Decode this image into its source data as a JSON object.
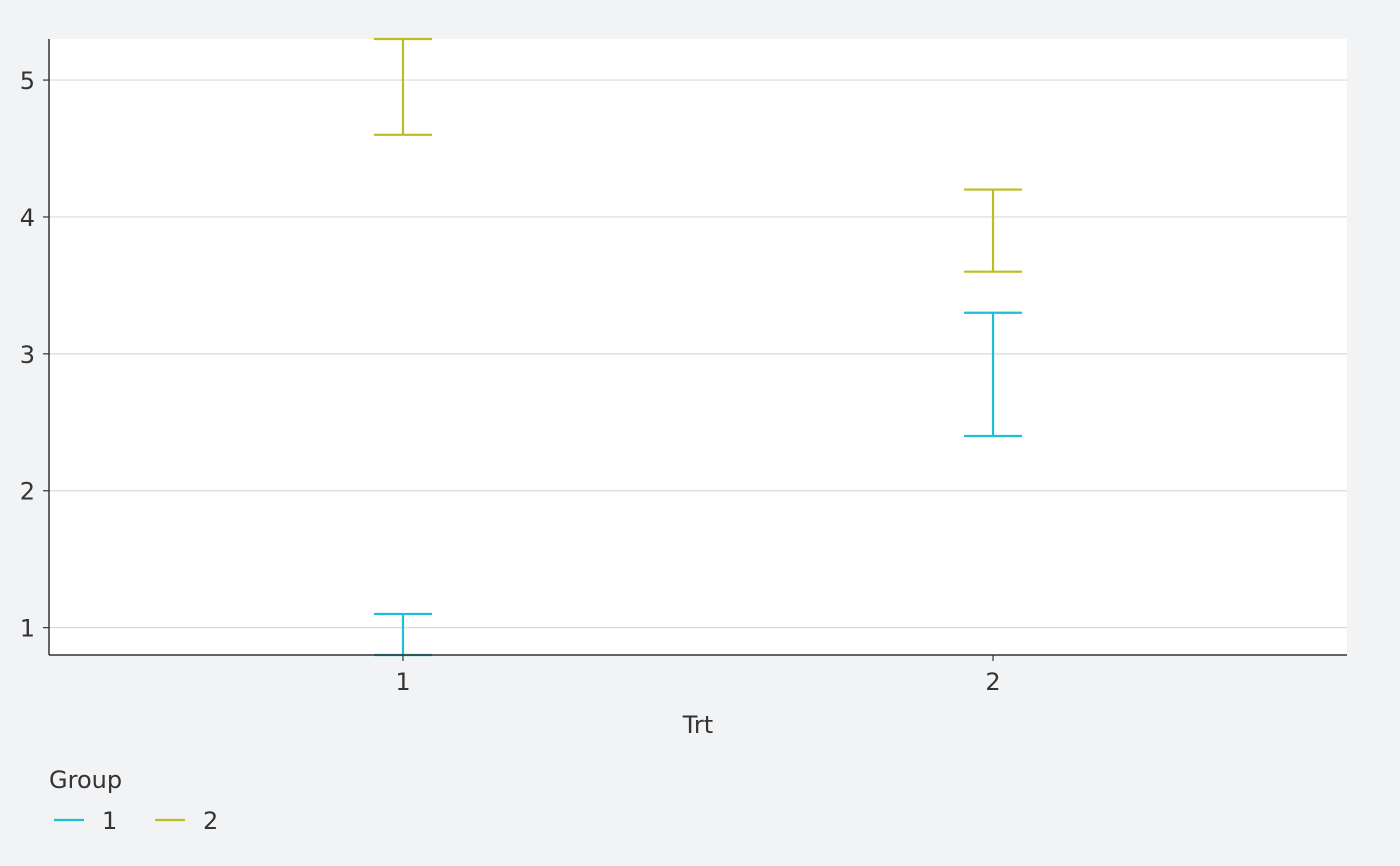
{
  "chart_data": {
    "type": "errorbar",
    "xlabel": "Trt",
    "ylabel": "",
    "categories": [
      "1",
      "2"
    ],
    "ylim": [
      0.8,
      5.3
    ],
    "y_ticks": [
      1,
      2,
      3,
      4,
      5
    ],
    "grid": "horizontal",
    "legend": {
      "title": "Group",
      "position": "bottom-left"
    },
    "series": [
      {
        "name": "1",
        "color": "#1ebfd6",
        "intervals": [
          {
            "x": "1",
            "lower": 0.8,
            "upper": 1.1
          },
          {
            "x": "2",
            "lower": 2.4,
            "upper": 3.3
          }
        ]
      },
      {
        "name": "2",
        "color": "#bcbd22",
        "intervals": [
          {
            "x": "1",
            "lower": 4.6,
            "upper": 5.3
          },
          {
            "x": "2",
            "lower": 3.6,
            "upper": 4.2
          }
        ]
      }
    ]
  }
}
